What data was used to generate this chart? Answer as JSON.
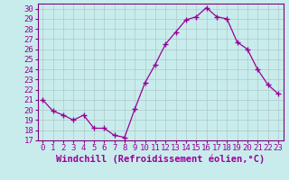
{
  "x": [
    0,
    1,
    2,
    3,
    4,
    5,
    6,
    7,
    8,
    9,
    10,
    11,
    12,
    13,
    14,
    15,
    16,
    17,
    18,
    19,
    20,
    21,
    22,
    23
  ],
  "y": [
    21.0,
    19.9,
    19.5,
    19.0,
    19.5,
    18.2,
    18.2,
    17.5,
    17.3,
    20.1,
    22.7,
    24.5,
    26.5,
    27.7,
    28.9,
    29.2,
    30.1,
    29.2,
    29.0,
    26.7,
    26.0,
    24.0,
    22.5,
    21.6
  ],
  "line_color": "#990099",
  "marker": "+",
  "marker_size": 4,
  "bg_color": "#c8ecec",
  "grid_color": "#b0c8c8",
  "xlabel": "Windchill (Refroidissement éolien,°C)",
  "xlim": [
    -0.5,
    23.5
  ],
  "ylim": [
    17,
    30.5
  ],
  "yticks": [
    17,
    18,
    19,
    20,
    21,
    22,
    23,
    24,
    25,
    26,
    27,
    28,
    29,
    30
  ],
  "xticks": [
    0,
    1,
    2,
    3,
    4,
    5,
    6,
    7,
    8,
    9,
    10,
    11,
    12,
    13,
    14,
    15,
    16,
    17,
    18,
    19,
    20,
    21,
    22,
    23
  ],
  "tick_fontsize": 6.5,
  "xlabel_fontsize": 7.5,
  "spine_color": "#800080"
}
